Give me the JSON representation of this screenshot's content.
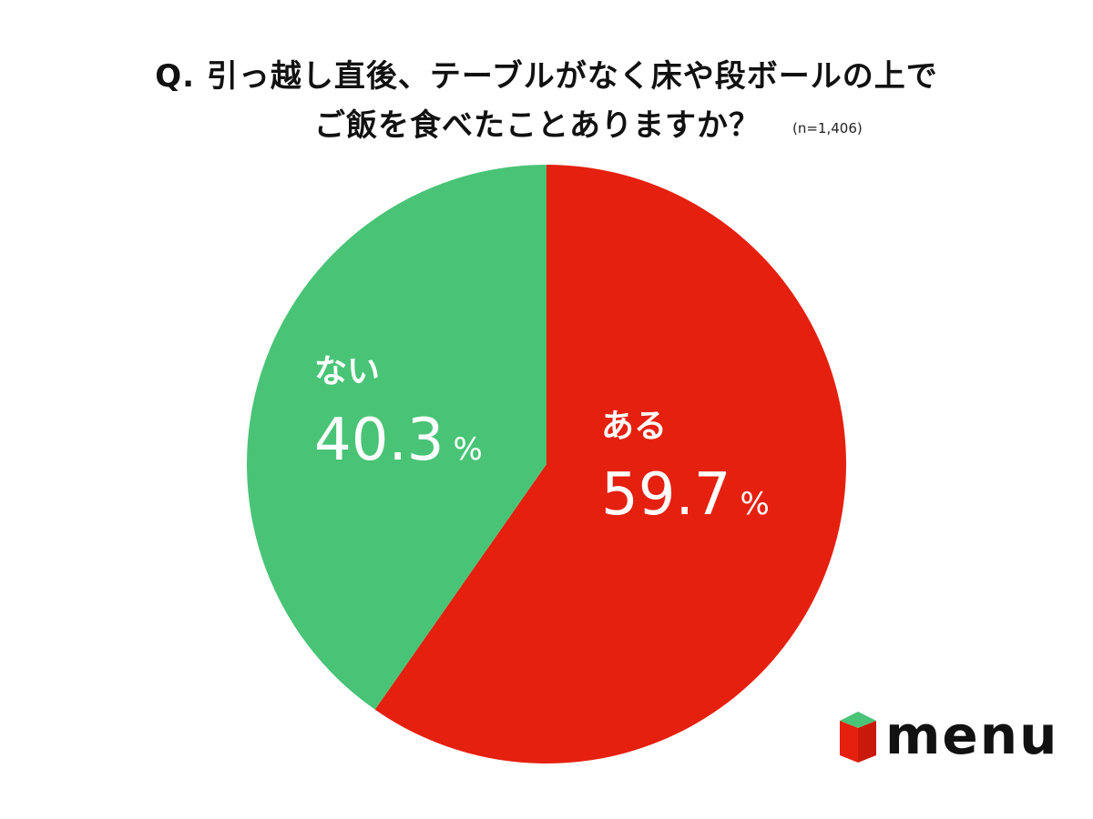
{
  "title": {
    "line1": "Q.  引っ越し直後、テーブルがなく床や段ボールの上で",
    "line2": "ご飯を食べたことありますか？",
    "sample_size": "(n=1,406)"
  },
  "chart_data": {
    "type": "pie",
    "categories": [
      "ある",
      "ない"
    ],
    "values": [
      59.7,
      40.3
    ],
    "value_labels": [
      "59.7",
      "40.3"
    ],
    "unit": "%",
    "colors": [
      "#e5200f",
      "#49c476"
    ],
    "start_angle": "12 o'clock",
    "direction": "clockwise"
  },
  "logo": {
    "text": "menu",
    "icon": "menu-logo-icon",
    "icon_colors": [
      "#e5200f",
      "#49c476"
    ]
  }
}
